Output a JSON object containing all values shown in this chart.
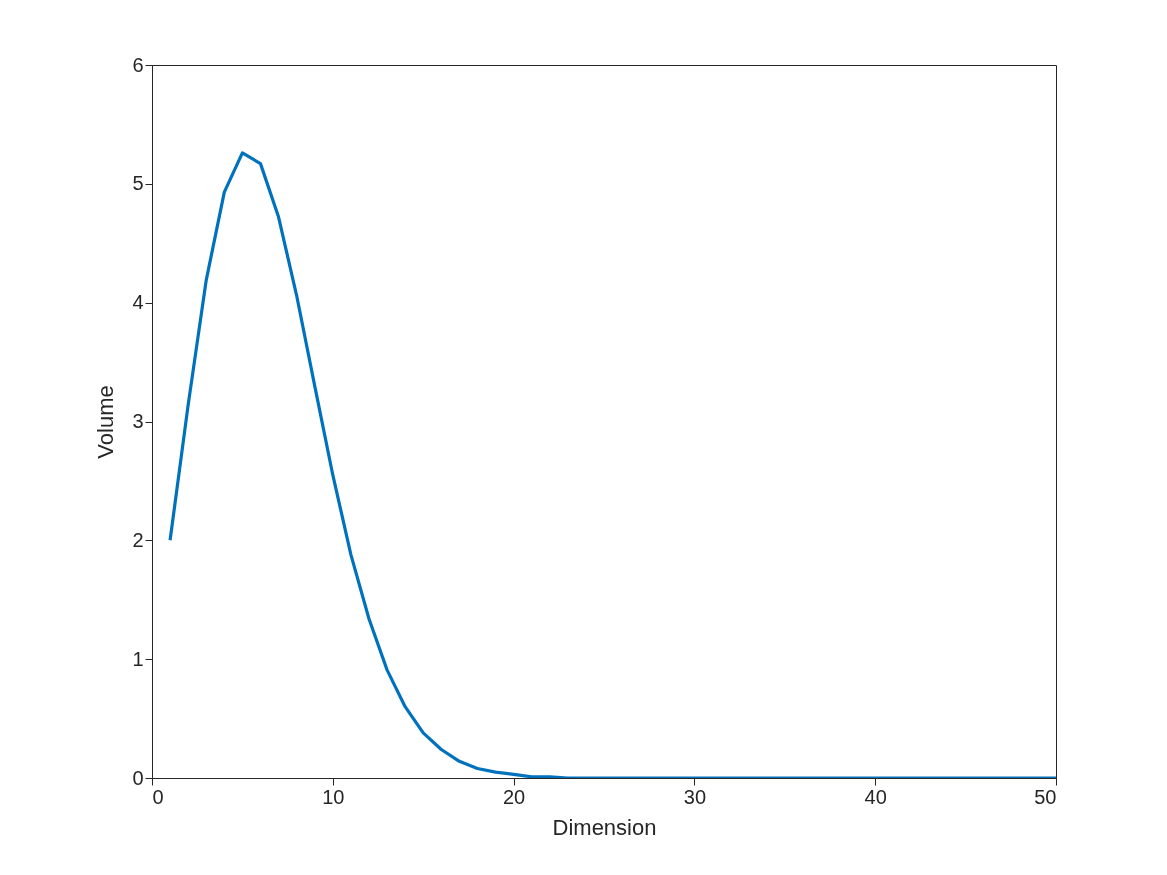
{
  "chart_data": {
    "type": "line",
    "xlabel": "Dimension",
    "ylabel": "Volume",
    "x": [
      1,
      2,
      3,
      4,
      5,
      6,
      7,
      8,
      9,
      10,
      11,
      12,
      13,
      14,
      15,
      16,
      17,
      18,
      19,
      20,
      21,
      22,
      23,
      24,
      25,
      26,
      27,
      28,
      29,
      30,
      31,
      32,
      33,
      34,
      35,
      36,
      37,
      38,
      39,
      40,
      41,
      42,
      43,
      44,
      45,
      46,
      47,
      48,
      49,
      50
    ],
    "series": [
      {
        "color": "#0072bd",
        "values": [
          2.0,
          3.14,
          4.19,
          4.93,
          5.26,
          5.17,
          4.72,
          4.06,
          3.3,
          2.55,
          1.88,
          1.34,
          0.91,
          0.6,
          0.38,
          0.24,
          0.14,
          0.08,
          0.05,
          0.03,
          0.01,
          0.01,
          0,
          0,
          0,
          0,
          0,
          0,
          0,
          0,
          0,
          0,
          0,
          0,
          0,
          0,
          0,
          0,
          0,
          0,
          0,
          0,
          0,
          0,
          0,
          0,
          0,
          0,
          0,
          0
        ]
      }
    ],
    "xlim": [
      0,
      50
    ],
    "ylim": [
      0,
      6
    ],
    "xticks": [
      0,
      10,
      20,
      30,
      40,
      50
    ],
    "yticks": [
      0,
      1,
      2,
      3,
      4,
      5,
      6
    ],
    "line_style": "solid"
  }
}
